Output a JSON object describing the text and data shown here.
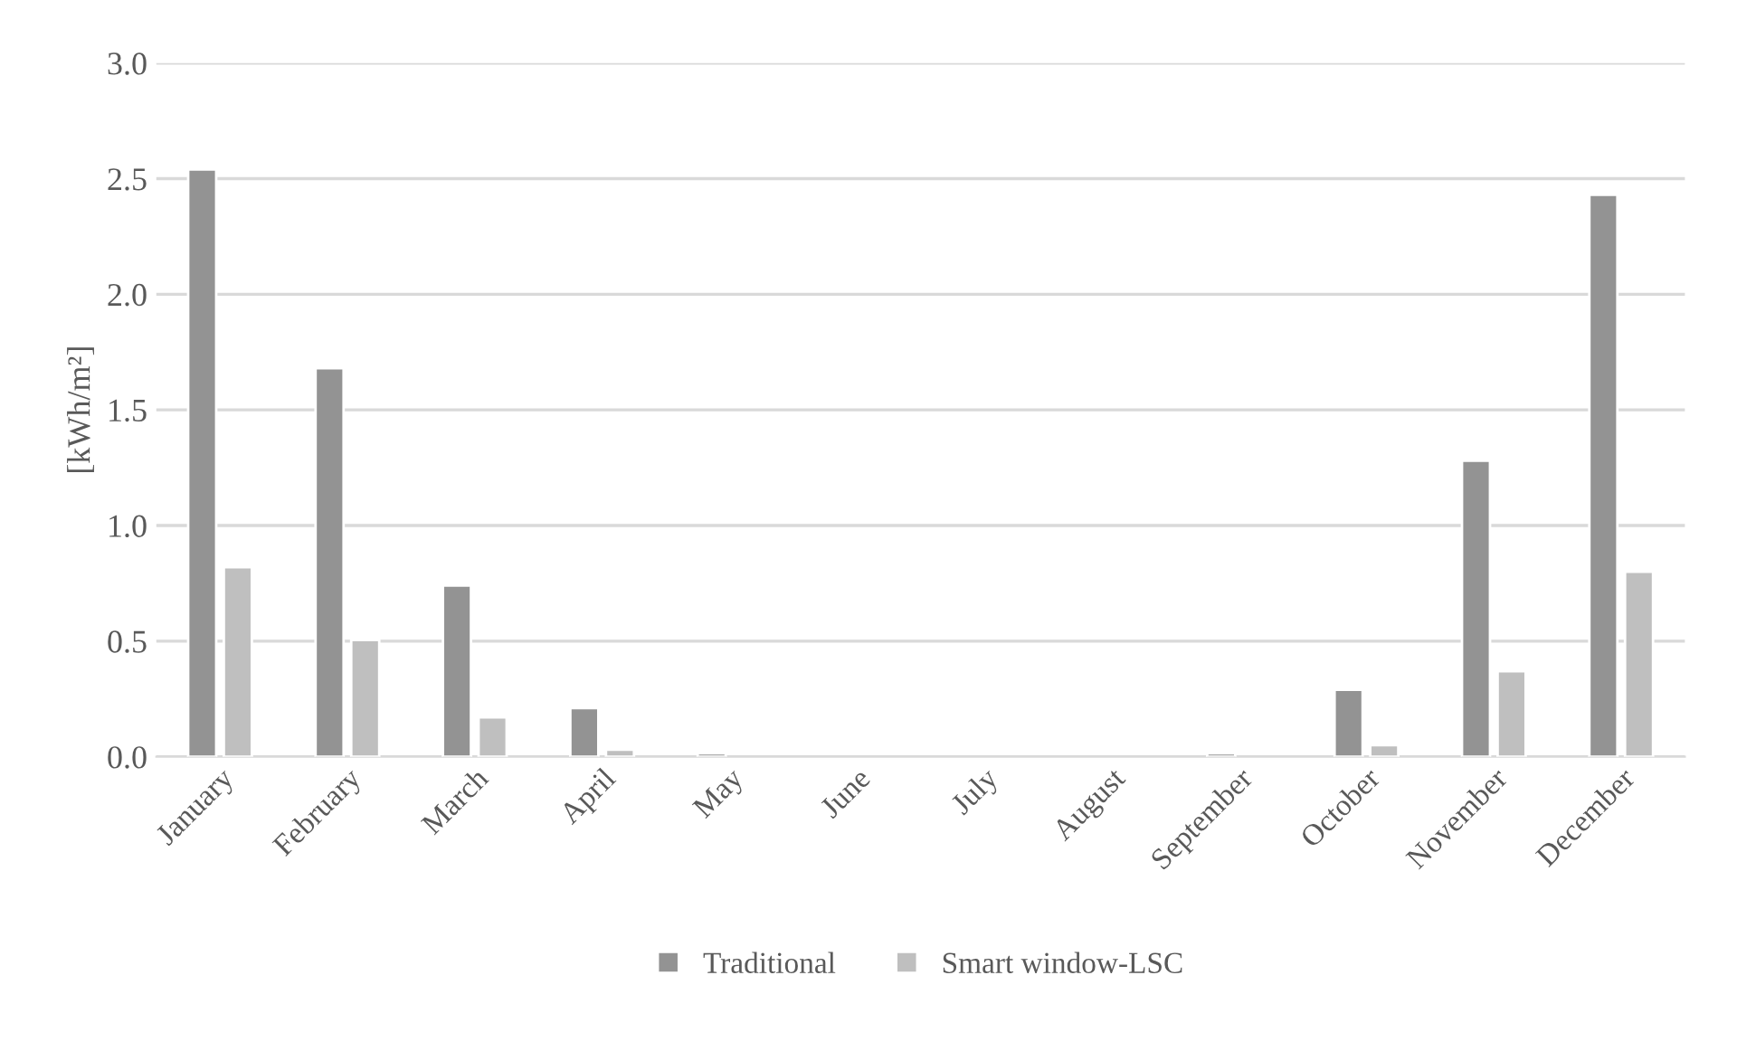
{
  "chart_data": {
    "type": "bar",
    "ylabel": "[kWh/m²]",
    "categories": [
      "January",
      "February",
      "March",
      "April",
      "May",
      "June",
      "July",
      "August",
      "September",
      "October",
      "November",
      "December"
    ],
    "series": [
      {
        "name": "Traditional",
        "color": "#939393",
        "values": [
          2.54,
          1.68,
          0.74,
          0.21,
          0.015,
          null,
          null,
          null,
          0.015,
          0.29,
          1.28,
          2.43
        ]
      },
      {
        "name": "Smart window-LSC",
        "color": "#bfbfbf",
        "values": [
          0.82,
          0.505,
          0.17,
          0.03,
          null,
          null,
          null,
          null,
          null,
          0.05,
          0.37,
          0.8
        ]
      }
    ],
    "ylim": [
      0,
      3.0
    ],
    "yticks": [
      {
        "value": 0,
        "label": "0.0"
      },
      {
        "value": 0.5,
        "label": "0.5"
      },
      {
        "value": 1.0,
        "label": "1.0"
      },
      {
        "value": 1.5,
        "label": "1.5"
      },
      {
        "value": 2.0,
        "label": "2.0"
      },
      {
        "value": 2.5,
        "label": "2.5"
      },
      {
        "value": 3.0,
        "label": "3.0"
      }
    ],
    "grid": "y",
    "legend": "bottom"
  }
}
